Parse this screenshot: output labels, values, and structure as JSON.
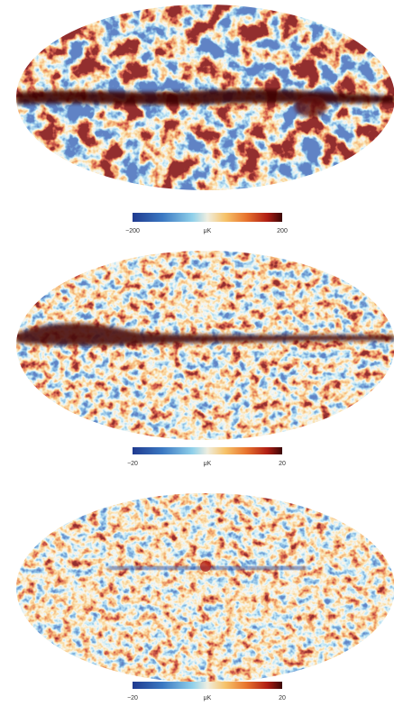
{
  "panels": [
    {
      "colorbar": {
        "min_label": "−200",
        "unit": "μK",
        "max_label": "200"
      }
    },
    {
      "colorbar": {
        "min_label": "−20",
        "unit": "μK",
        "max_label": "20"
      }
    },
    {
      "colorbar": {
        "min_label": "−20",
        "unit": "μK",
        "max_label": "20"
      }
    }
  ]
}
